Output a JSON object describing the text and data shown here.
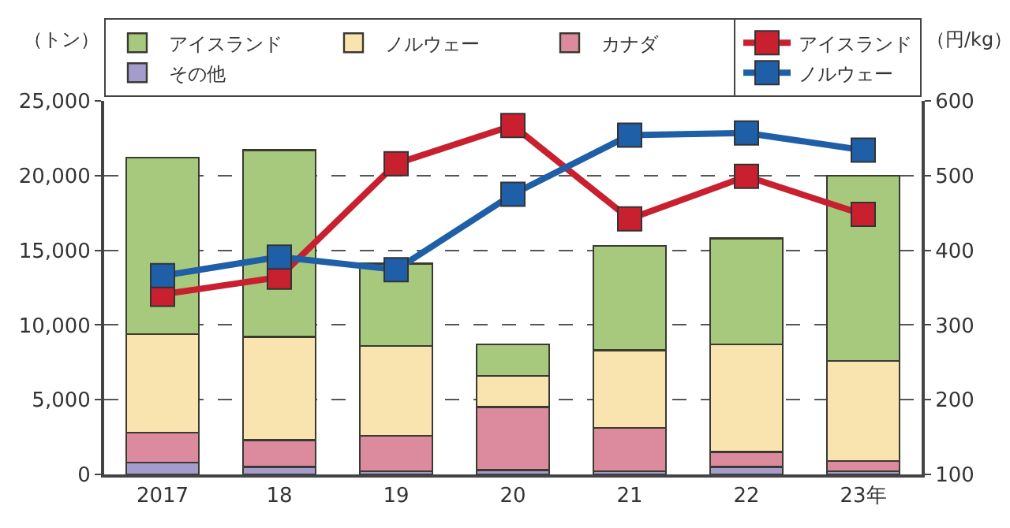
{
  "chart_data": {
    "type": "bar",
    "stacked": true,
    "ylabel": "（トン）",
    "y2label": "（円/kg）",
    "categories": [
      "2017",
      "18",
      "19",
      "20",
      "21",
      "22",
      "23年"
    ],
    "series": [
      {
        "name": "その他",
        "color": "#a49ccc",
        "values": [
          800,
          500,
          200,
          300,
          200,
          500,
          200
        ]
      },
      {
        "name": "カナダ",
        "color": "#dc8a9e",
        "values": [
          2000,
          1800,
          2400,
          4200,
          2900,
          1000,
          700
        ]
      },
      {
        "name": "ノルウェー",
        "color": "#f9e4b0",
        "values": [
          6600,
          6900,
          6000,
          2100,
          5200,
          7200,
          6700
        ]
      },
      {
        "name": "アイスランド",
        "color": "#a6c97e",
        "values": [
          11800,
          12500,
          5500,
          2100,
          7000,
          7100,
          12400
        ]
      },
      {
        "name": "アイスランド",
        "type": "line",
        "axis": "y2",
        "color": "#c8202f",
        "values": [
          341,
          364,
          516,
          567,
          442,
          499,
          448
        ]
      },
      {
        "name": "ノルウェー",
        "type": "line",
        "axis": "y2",
        "color": "#1f5fa8",
        "values": [
          366,
          391,
          374,
          475,
          554,
          557,
          534
        ]
      }
    ],
    "ylim": [
      0,
      25000
    ],
    "yticks": [
      {
        "value": 0,
        "label": "0"
      },
      {
        "value": 5000,
        "label": "5,000"
      },
      {
        "value": 10000,
        "label": "10,000"
      },
      {
        "value": 15000,
        "label": "15,000"
      },
      {
        "value": 20000,
        "label": "20,000"
      },
      {
        "value": 25000,
        "label": "25,000"
      }
    ],
    "y2lim": [
      100,
      600
    ],
    "y2ticks": [
      100,
      200,
      300,
      400,
      500,
      600
    ],
    "grid": "y",
    "marker": "square",
    "legend": "top"
  }
}
